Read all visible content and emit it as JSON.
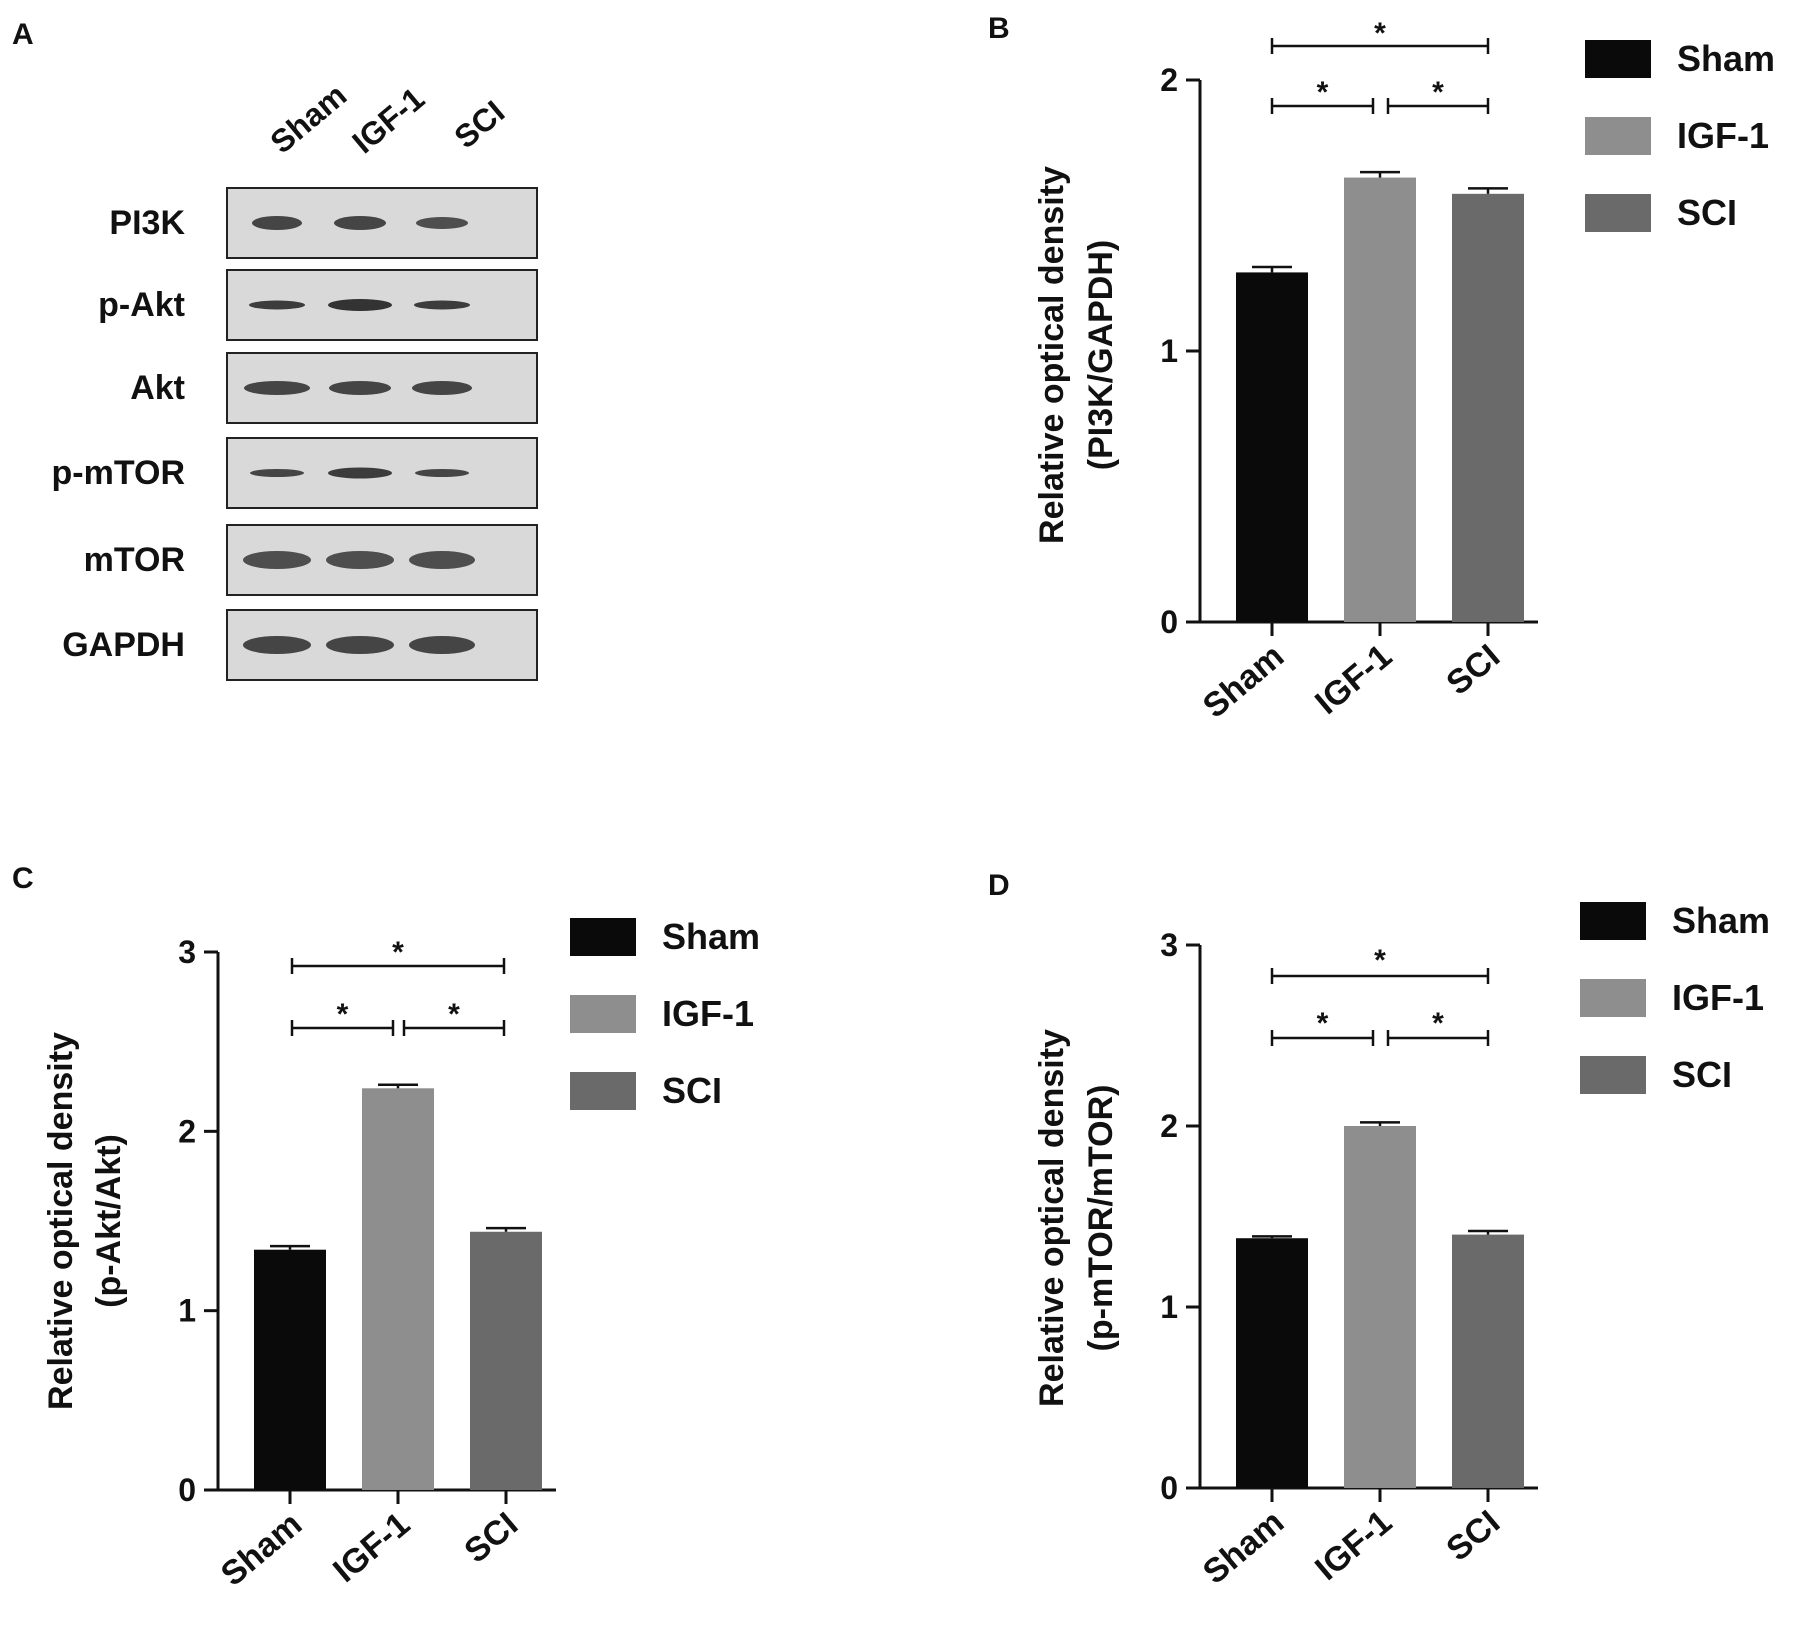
{
  "panel_labels": [
    "A",
    "B",
    "C",
    "D"
  ],
  "western_blot": {
    "lanes": [
      "Sham",
      "IGF-1",
      "SCI"
    ],
    "proteins": [
      "PI3K",
      "p-Akt",
      "Akt",
      "p-mTOR",
      "mTOR",
      "GAPDH"
    ]
  },
  "colors": {
    "Sham": "#0a0a0a",
    "IGF-1": "#8e8e8e",
    "SCI": "#6a6a6a"
  },
  "chart_data": [
    {
      "panel": "B",
      "type": "bar",
      "categories": [
        "Sham",
        "IGF-1",
        "SCI"
      ],
      "values": [
        1.29,
        1.64,
        1.58
      ],
      "errors": [
        0.02,
        0.02,
        0.02
      ],
      "ylabel_line1": "Relative optical density",
      "ylabel_line2": "(PI3K/GAPDH)",
      "ylim": [
        0,
        2
      ],
      "yticks": [
        "0",
        "1",
        "2"
      ],
      "legend": [
        "Sham",
        "IGF-1",
        "SCI"
      ],
      "legend_position": "top-right",
      "significance": [
        "*",
        "*",
        "*"
      ]
    },
    {
      "panel": "C",
      "type": "bar",
      "categories": [
        "Sham",
        "IGF-1",
        "SCI"
      ],
      "values": [
        1.34,
        2.24,
        1.44
      ],
      "errors": [
        0.02,
        0.02,
        0.02
      ],
      "ylabel_line1": "Relative optical density",
      "ylabel_line2": "(p-Akt/Akt)",
      "ylim": [
        0,
        3
      ],
      "yticks": [
        "0",
        "1",
        "2",
        "3"
      ],
      "legend": [
        "Sham",
        "IGF-1",
        "SCI"
      ],
      "legend_position": "top-right",
      "significance": [
        "*",
        "*",
        "*"
      ]
    },
    {
      "panel": "D",
      "type": "bar",
      "categories": [
        "Sham",
        "IGF-1",
        "SCI"
      ],
      "values": [
        1.38,
        2.0,
        1.4
      ],
      "errors": [
        0.01,
        0.02,
        0.02
      ],
      "ylabel_line1": "Relative optical density",
      "ylabel_line2": "(p-mTOR/mTOR)",
      "ylim": [
        0,
        3
      ],
      "yticks": [
        "0",
        "1",
        "2",
        "3"
      ],
      "legend": [
        "Sham",
        "IGF-1",
        "SCI"
      ],
      "legend_position": "top-right",
      "significance": [
        "*",
        "*",
        "*"
      ]
    }
  ]
}
